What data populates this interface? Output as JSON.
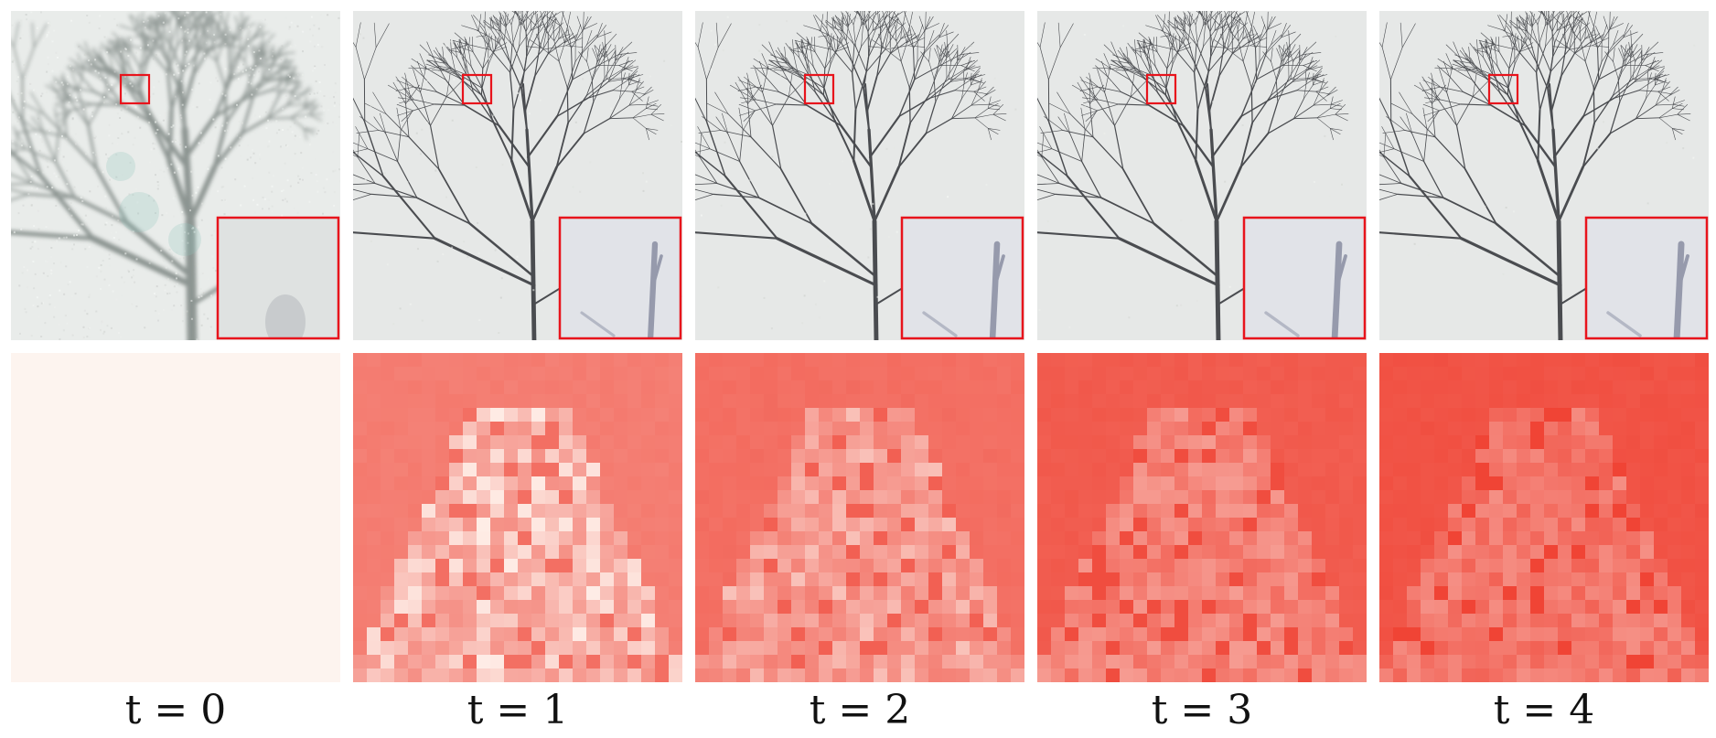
{
  "columns": [
    {
      "label": "t = 0",
      "heat_level": 0.04,
      "noise": 1.0,
      "sharpness": 0.3
    },
    {
      "label": "t = 1",
      "heat_level": 0.55,
      "noise": 0.1,
      "sharpness": 0.9
    },
    {
      "label": "t = 2",
      "heat_level": 0.65,
      "noise": 0.06,
      "sharpness": 0.94
    },
    {
      "label": "t = 3",
      "heat_level": 0.78,
      "noise": 0.04,
      "sharpness": 0.97
    },
    {
      "label": "t = 4",
      "heat_level": 0.84,
      "noise": 0.03,
      "sharpness": 1.0
    }
  ],
  "colors": {
    "highlight_box": "#e8141c",
    "sky": "#e6e8e7",
    "branch": "#4a4c50",
    "heat_low": "#fdf4ef",
    "heat_high": "#ef3b2c"
  }
}
